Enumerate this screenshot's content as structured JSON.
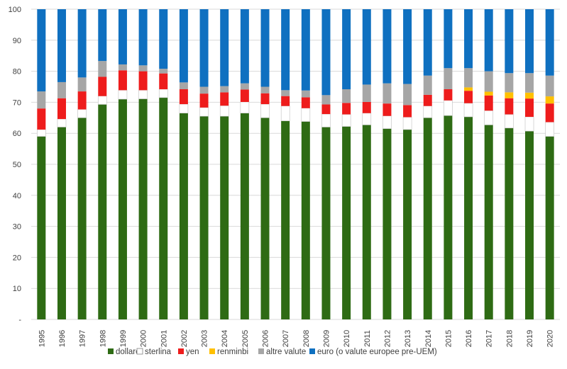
{
  "chart_data": {
    "type": "bar",
    "stacked": true,
    "title": "",
    "xlabel": "",
    "ylabel": "",
    "ylim": [
      0,
      100
    ],
    "yticks": [
      0,
      10,
      20,
      30,
      40,
      50,
      60,
      70,
      80,
      90,
      100
    ],
    "y_zero_label": "-",
    "categories": [
      "1995",
      "1996",
      "1997",
      "1998",
      "1999",
      "2000",
      "2001",
      "2002",
      "2003",
      "2004",
      "2005",
      "2006",
      "2007",
      "2008",
      "2009",
      "2010",
      "2011",
      "2012",
      "2013",
      "2014",
      "2015",
      "2016",
      "2017",
      "2018",
      "2019",
      "2020"
    ],
    "legend_position": "bottom",
    "grid": true,
    "series": [
      {
        "name": "dollaro",
        "color": "#2e6b14",
        "values": [
          59.0,
          62.0,
          65.0,
          69.3,
          71.0,
          71.1,
          71.5,
          66.5,
          65.5,
          65.5,
          66.5,
          65.0,
          64.0,
          63.8,
          62.0,
          62.2,
          62.7,
          61.5,
          61.2,
          65.0,
          65.7,
          65.3,
          62.7,
          61.7,
          60.7,
          59.0
        ]
      },
      {
        "name": "sterlina",
        "color": "#ffffff",
        "values": [
          2.2,
          2.6,
          2.7,
          2.7,
          2.9,
          2.8,
          2.7,
          2.9,
          2.8,
          3.4,
          3.6,
          4.4,
          4.8,
          4.3,
          4.2,
          3.9,
          3.8,
          4.1,
          4.0,
          3.8,
          4.9,
          4.4,
          4.6,
          4.4,
          4.6,
          4.6
        ]
      },
      {
        "name": "yen",
        "color": "#ee1c1c",
        "values": [
          6.8,
          6.7,
          5.8,
          6.2,
          6.4,
          6.1,
          5.1,
          4.8,
          4.5,
          4.3,
          4.0,
          3.5,
          3.2,
          3.5,
          3.1,
          3.7,
          3.6,
          4.0,
          3.9,
          3.6,
          3.6,
          4.0,
          4.9,
          5.2,
          5.9,
          6.0
        ]
      },
      {
        "name": "renminbi",
        "color": "#ffc000",
        "values": [
          0,
          0,
          0,
          0,
          0,
          0,
          0,
          0,
          0,
          0,
          0,
          0,
          0,
          0,
          0,
          0,
          0,
          0,
          0,
          0,
          0,
          1.1,
          1.2,
          1.9,
          1.9,
          2.3
        ]
      },
      {
        "name": "altre valute",
        "color": "#a6a6a6",
        "values": [
          5.5,
          5.2,
          4.5,
          5.1,
          1.9,
          1.9,
          1.5,
          2.2,
          2.2,
          2.0,
          2.0,
          2.1,
          1.9,
          2.2,
          3.0,
          4.4,
          5.6,
          6.5,
          6.8,
          6.2,
          6.8,
          6.2,
          6.6,
          6.2,
          6.3,
          6.7
        ]
      },
      {
        "name": "euro (o valute europee pre-UEM)",
        "color": "#0f70c0",
        "values": [
          26.5,
          23.5,
          22.0,
          16.7,
          17.8,
          18.1,
          19.2,
          23.6,
          25.0,
          24.8,
          23.9,
          25.0,
          26.1,
          26.2,
          27.7,
          25.8,
          24.3,
          23.9,
          24.1,
          21.4,
          19.0,
          19.0,
          20.0,
          20.6,
          20.6,
          21.4
        ]
      }
    ]
  }
}
